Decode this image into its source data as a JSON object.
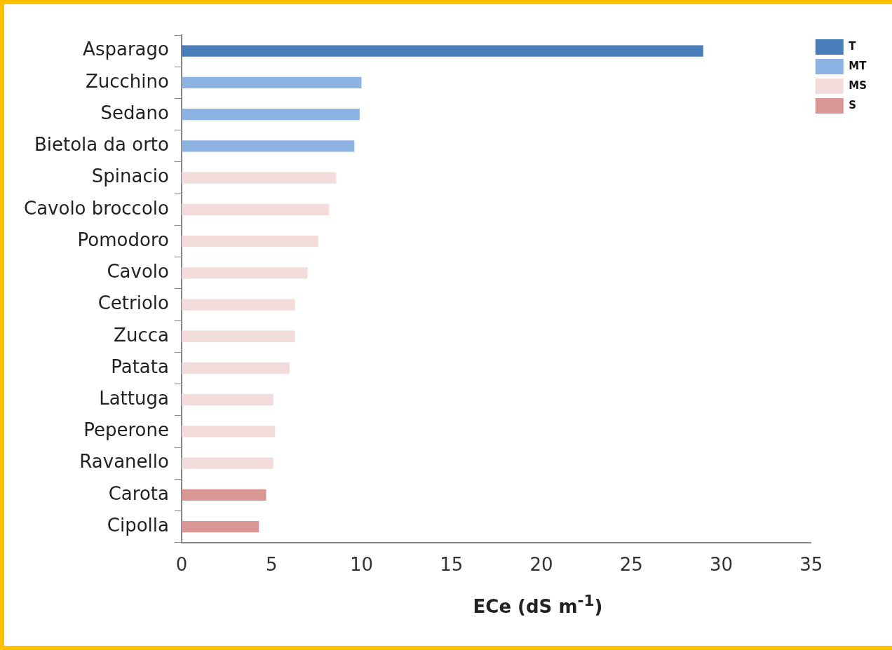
{
  "chart_data": {
    "type": "bar",
    "orientation": "horizontal",
    "stacked": true,
    "categories": [
      "Asparago",
      "Zucchino",
      "Sedano",
      "Bietola da orto",
      "Spinacio",
      "Cavolo broccolo",
      "Pomodoro",
      "Cavolo",
      "Cetriolo",
      "Zucca",
      "Patata",
      "Lattuga",
      "Peperone",
      "Ravanello",
      "Carota",
      "Cipolla"
    ],
    "series": [
      {
        "name": "T",
        "color": "#4a7ebb",
        "values": [
          29.0,
          null,
          null,
          null,
          null,
          null,
          null,
          null,
          null,
          null,
          null,
          null,
          null,
          null,
          null,
          null
        ]
      },
      {
        "name": "MT",
        "color": "#8db3e2",
        "values": [
          null,
          10.0,
          9.9,
          9.6,
          null,
          null,
          null,
          null,
          null,
          null,
          null,
          null,
          null,
          null,
          null,
          null
        ]
      },
      {
        "name": "MS",
        "color": "#f2dcdb",
        "values": [
          null,
          null,
          null,
          null,
          8.6,
          8.2,
          7.6,
          7.0,
          6.3,
          6.3,
          6.0,
          5.1,
          5.2,
          5.1,
          null,
          null
        ]
      },
      {
        "name": "S",
        "color": "#d99694",
        "values": [
          null,
          null,
          null,
          null,
          null,
          null,
          null,
          null,
          null,
          null,
          null,
          null,
          null,
          null,
          4.7,
          4.3
        ]
      }
    ],
    "xlabel": "ECe (dS m$^{-1}$)",
    "xlim": [
      0,
      35
    ],
    "xticks": [
      0,
      5,
      10,
      15,
      20,
      25,
      30,
      35
    ],
    "grid": false,
    "legend": "top right"
  }
}
